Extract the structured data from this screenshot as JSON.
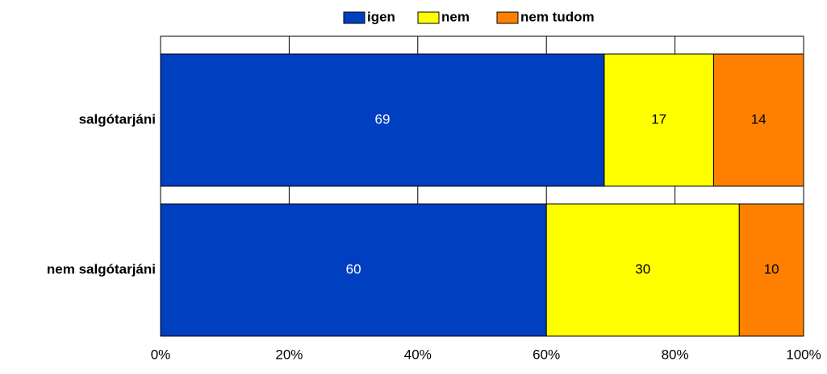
{
  "chart_data": {
    "type": "stacked_bar_horizontal",
    "categories": [
      "salgótarjáni",
      "nem salgótarjáni"
    ],
    "series": [
      {
        "name": "igen",
        "color": "#0040c0",
        "values": [
          69,
          60
        ]
      },
      {
        "name": "nem",
        "color": "#ffff00",
        "values": [
          17,
          30
        ]
      },
      {
        "name": "nem tudom",
        "color": "#ff8000",
        "values": [
          14,
          10
        ]
      }
    ],
    "xlim": [
      0,
      100
    ],
    "xticks": [
      {
        "value": 0,
        "label": "0%"
      },
      {
        "value": 20,
        "label": "20%"
      },
      {
        "value": 40,
        "label": "40%"
      },
      {
        "value": 60,
        "label": "60%"
      },
      {
        "value": 80,
        "label": "80%"
      },
      {
        "value": 100,
        "label": "100%"
      }
    ],
    "grid": true,
    "legend": "top"
  }
}
